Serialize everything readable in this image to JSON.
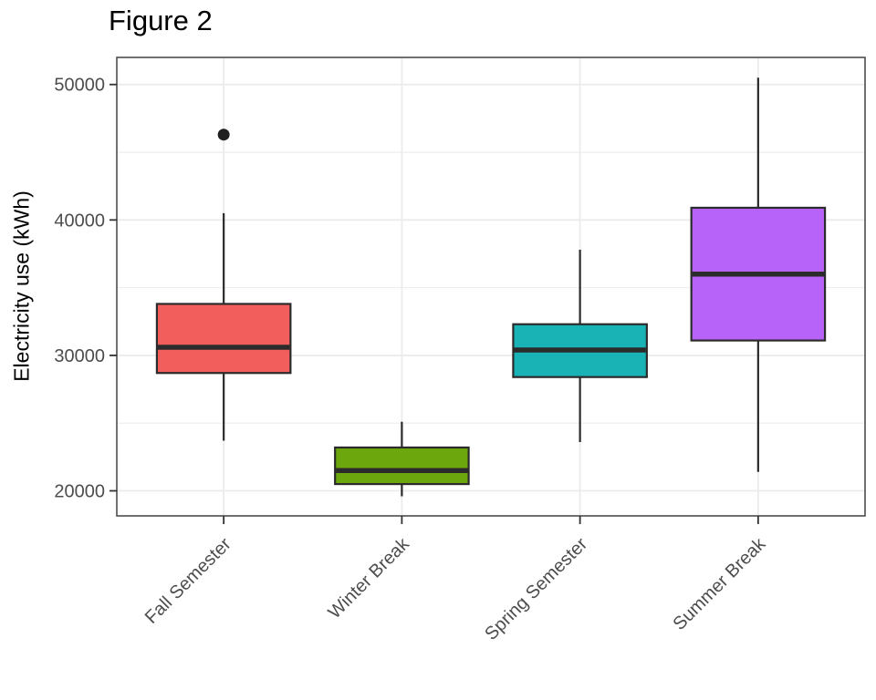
{
  "title": "Figure 2",
  "chart_data": {
    "type": "boxplot",
    "title": "Figure 2",
    "ylabel": "Electricity use (kWh)",
    "xlabel": "",
    "ylim": [
      18150,
      52000
    ],
    "y_major_ticks": [
      20000,
      30000,
      40000,
      50000
    ],
    "y_minor_ticks": [
      25000,
      35000,
      45000
    ],
    "grid": "horizontal major+minor gridlines, vertical major gridline at each category center",
    "legend": "none",
    "categories": [
      "Fall Semester",
      "Winter Break",
      "Spring Semester",
      "Summer Break"
    ],
    "series": [
      {
        "category": "Fall Semester",
        "whisker_low": 23700,
        "q1": 28700,
        "median": 30600,
        "q3": 33800,
        "whisker_high": 40500,
        "outliers": [
          46300
        ],
        "fill": "#F25E5B"
      },
      {
        "category": "Winter Break",
        "whisker_low": 19600,
        "q1": 20500,
        "median": 21500,
        "q3": 23200,
        "whisker_high": 25100,
        "outliers": [],
        "fill": "#6CA80D"
      },
      {
        "category": "Spring Semester",
        "whisker_low": 23600,
        "q1": 28400,
        "median": 30400,
        "q3": 32300,
        "whisker_high": 37800,
        "outliers": [],
        "fill": "#1AB3B5"
      },
      {
        "category": "Summer Break",
        "whisker_low": 21400,
        "q1": 31100,
        "median": 36000,
        "q3": 40900,
        "whisker_high": 50500,
        "outliers": [],
        "fill": "#B763F9"
      }
    ],
    "style": {
      "box_stroke": "#2B2B2B",
      "outlier_color": "#1F1F1F",
      "grid_color": "#EBEBEB",
      "panel_border": "#4D4D4D",
      "tick_color": "#333333",
      "tick_label_color": "#4D4D4D",
      "title_color": "#000000",
      "panel_background": "#FFFFFF"
    }
  }
}
